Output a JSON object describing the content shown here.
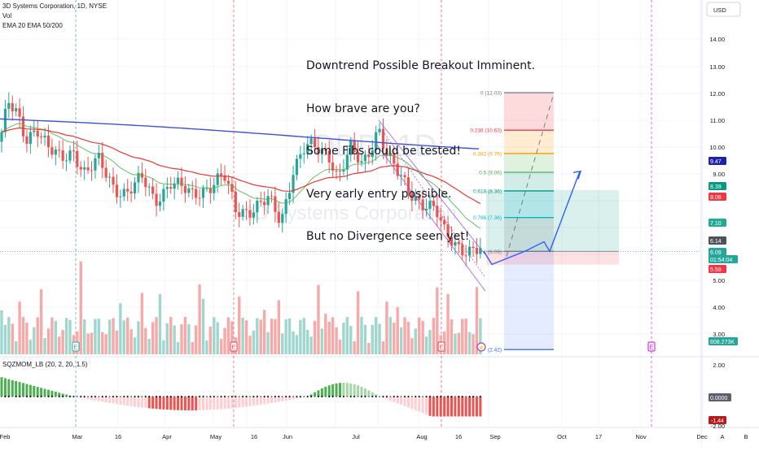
{
  "header": {
    "symbol_line": "3D Systems Corporation, 1D, NYSE",
    "vol_label": "Vol",
    "ema_label": "EMA 20 EMA 50/200",
    "currency": "USD",
    "watermark": "DDD, 1D",
    "watermark_name": "3D Systems Corporation"
  },
  "annotation_lines": [
    "Downtrend Possible Breakout Imminent.",
    "How brave are you?",
    "Some Fibs could be tested!",
    "Very early entry possible.",
    "But no Divergence seen yet!"
  ],
  "indicator": {
    "label": "SQZMOM_LB (20, 2, 20, 1.5)",
    "zero_label": "0.0000",
    "value_label": "-1.44",
    "axis_ticks": [
      "2.00",
      "-2.00"
    ]
  },
  "price_axis_ticks": [
    "14.00",
    "13.00",
    "12.00",
    "11.00",
    "10.00",
    "9.00",
    "5.00",
    "4.00",
    "3.00"
  ],
  "price_badges": [
    {
      "text": "9.47",
      "color": "#1e22aa"
    },
    {
      "text": "8.39",
      "color": "#089981"
    },
    {
      "text": "8.08",
      "color": "#f23645"
    },
    {
      "text": "7.10",
      "color": "#22ab94"
    },
    {
      "text": "6.14",
      "color": "#4d5358"
    },
    {
      "text": "6.09",
      "color": "#26a69a"
    },
    {
      "text": "01:54:04",
      "color": "#26a69a"
    },
    {
      "text": "5.59",
      "color": "#f23645"
    },
    {
      "text": "608.273K",
      "color": "#26a69a"
    }
  ],
  "time_axis_ticks": [
    "Feb",
    "Mar",
    "16",
    "Apr",
    "May",
    "16",
    "Jun",
    "Jul",
    "Aug",
    "16",
    "Sep",
    "Oct",
    "17",
    "Nov",
    "Dec"
  ],
  "fib_levels": [
    {
      "label": "0 (12.03)",
      "value": 12.03,
      "color": "#787b86"
    },
    {
      "label": "0.236 (10.63)",
      "value": 10.63,
      "color": "#f23645"
    },
    {
      "label": "0.382 (9.76)",
      "value": 9.76,
      "color": "#ff9800"
    },
    {
      "label": "0.5 (9.06)",
      "value": 9.06,
      "color": "#4caf50"
    },
    {
      "label": "0.618 (8.36)",
      "value": 8.36,
      "color": "#089981"
    },
    {
      "label": "0.786 (7.36)",
      "value": 7.36,
      "color": "#00bcd4"
    },
    {
      "label": "1 (6.09)",
      "value": 6.09,
      "color": "#787b86"
    },
    {
      "label": "(2.42)",
      "value": 2.42,
      "color": "#2962ff"
    }
  ],
  "position_tool": {
    "entry": 6.09,
    "target": 8.39,
    "stop": 5.59
  },
  "footer": {
    "scale_auto": "A",
    "scale_b": "B"
  },
  "chart_data": {
    "type": "candlestick",
    "title": "3D Systems Corporation, 1D, NYSE",
    "price_range": [
      2.6,
      14.6
    ],
    "last_price": 6.09,
    "ema_series": [
      {
        "name": "EMA 20",
        "color": "#4caf50"
      },
      {
        "name": "EMA 50",
        "color": "#e53935"
      },
      {
        "name": "EMA 200",
        "color": "#3f51d4"
      }
    ],
    "projected_path": [
      6.09,
      5.6,
      6.1,
      6.45,
      6.09,
      9.1
    ],
    "fib_range": [
      12.03,
      6.09
    ]
  }
}
